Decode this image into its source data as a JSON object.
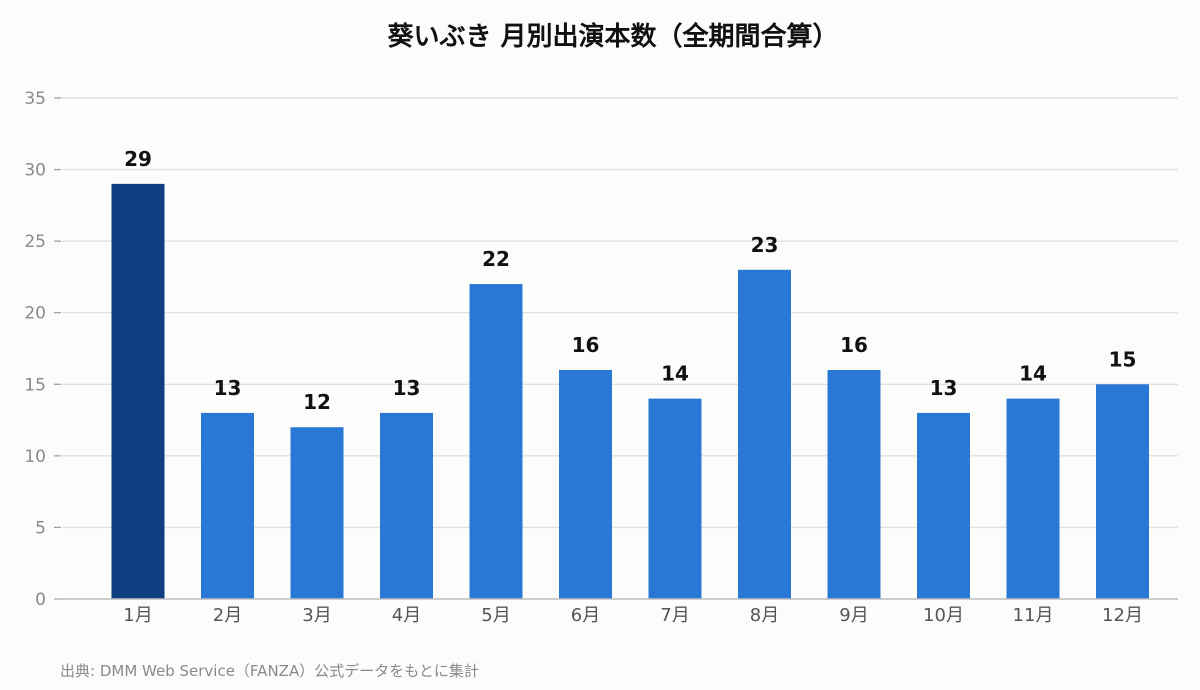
{
  "title": "葵いぶき 月別出演本数（全期間合算）",
  "source_note": "出典: DMM Web Service（FANZA）公式データをもとに集計",
  "colors": {
    "highlight_bar": "#0f3f80",
    "bar": "#2a78d6",
    "grid": "#e0e0e0",
    "axis": "#bdbdbd",
    "background": "#fcfcfb"
  },
  "chart_data": {
    "type": "bar",
    "title": "葵いぶき 月別出演本数（全期間合算）",
    "categories": [
      "1月",
      "2月",
      "3月",
      "4月",
      "5月",
      "6月",
      "7月",
      "8月",
      "9月",
      "10月",
      "11月",
      "12月"
    ],
    "values": [
      29,
      13,
      12,
      13,
      22,
      16,
      14,
      23,
      16,
      13,
      14,
      15
    ],
    "ylim": [
      0,
      35
    ],
    "yticks": [
      0,
      5,
      10,
      15,
      20,
      25,
      30,
      35
    ],
    "grid": true,
    "legend": "none",
    "data_labels": true,
    "highlighted_category": "1月"
  }
}
